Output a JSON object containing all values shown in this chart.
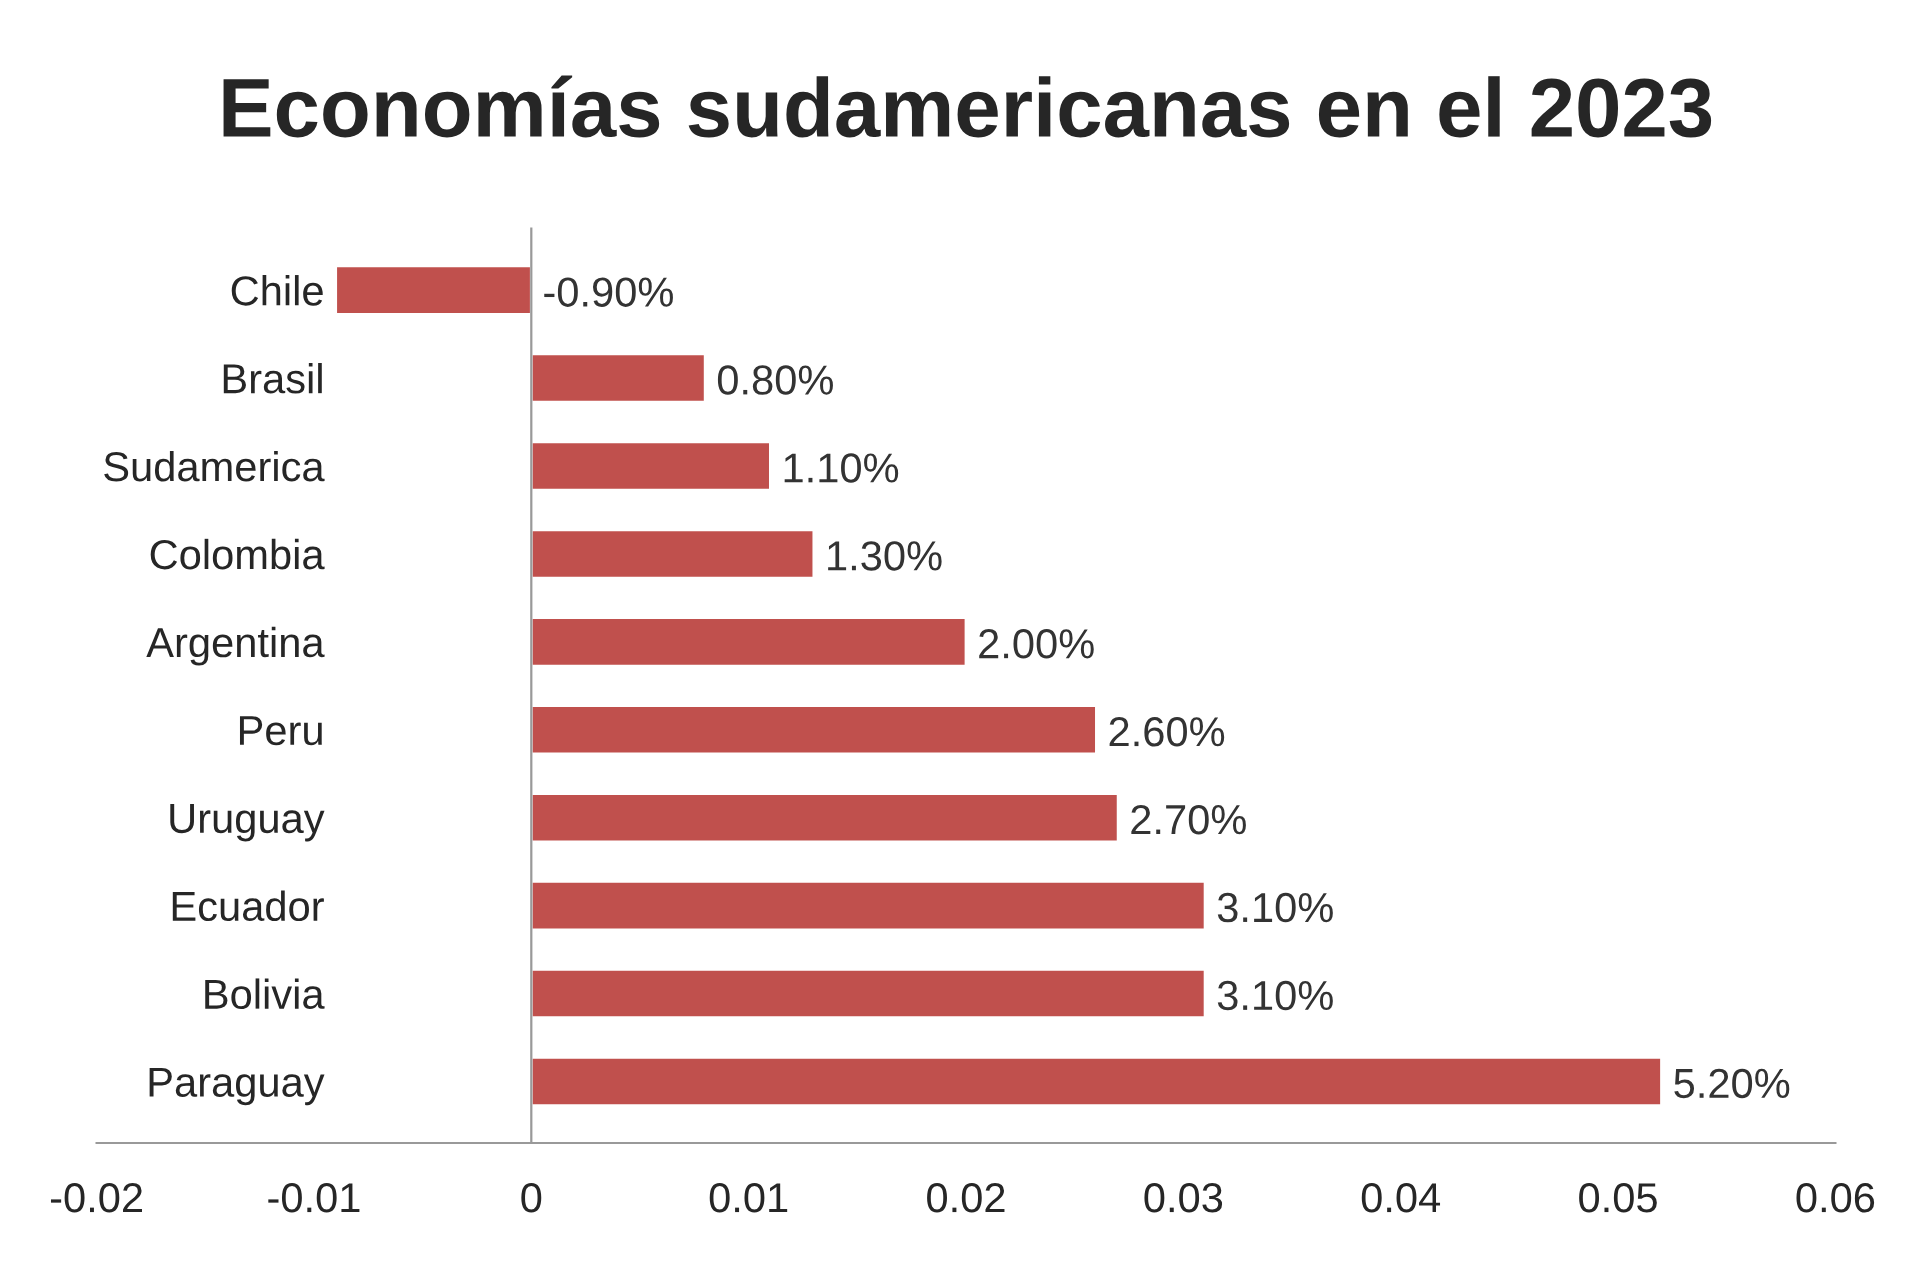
{
  "chart_data": {
    "type": "bar",
    "orientation": "horizontal",
    "title": "Economías sudamericanas en el 2023",
    "categories": [
      "Chile",
      "Brasil",
      "Sudamerica",
      "Colombia",
      "Argentina",
      "Peru",
      "Uruguay",
      "Ecuador",
      "Bolivia",
      "Paraguay"
    ],
    "values": [
      -0.009,
      0.008,
      0.011,
      0.013,
      0.02,
      0.026,
      0.027,
      0.031,
      0.031,
      0.052
    ],
    "value_labels": [
      "-0.90%",
      "0.80%",
      "1.10%",
      "1.30%",
      "2.00%",
      "2.60%",
      "2.70%",
      "3.10%",
      "3.10%",
      "5.20%"
    ],
    "color": "#c0504d",
    "xlim": [
      -0.02,
      0.06
    ],
    "xticks": [
      -0.02,
      -0.01,
      0,
      0.01,
      0.02,
      0.03,
      0.04,
      0.05,
      0.06
    ],
    "legend": false
  }
}
